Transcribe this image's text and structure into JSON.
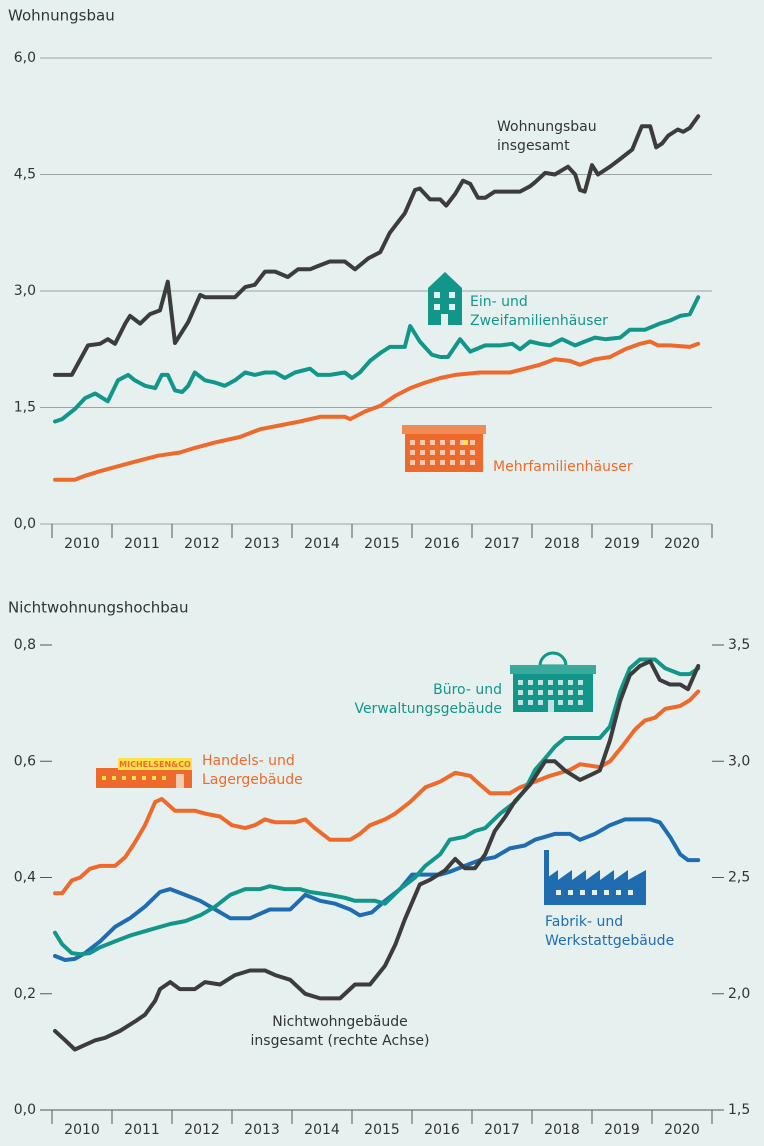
{
  "chart_data": [
    {
      "type": "line",
      "title": "Wohnungsbau",
      "categories": [
        "2010",
        "2011",
        "2012",
        "2013",
        "2014",
        "2015",
        "2016",
        "2017",
        "2018",
        "2019",
        "2020"
      ],
      "xlim": [
        2010,
        2021
      ],
      "ylim": [
        0,
        6
      ],
      "yticks": [
        {
          "value": 0,
          "label": "0,0"
        },
        {
          "value": 1.5,
          "label": "1,5"
        },
        {
          "value": 3,
          "label": "3,0"
        },
        {
          "value": 4.5,
          "label": "4,5"
        },
        {
          "value": 6,
          "label": "6,0"
        }
      ],
      "grid": true,
      "series": [
        {
          "name": "Wohnungsbau insgesamt",
          "color": "#3c3c3c",
          "x": [
            2010.05,
            2010.33,
            2010.6,
            2010.8,
            2010.93,
            2011.05,
            2011.22,
            2011.3,
            2011.47,
            2011.63,
            2011.8,
            2011.93,
            2012.05,
            2012.27,
            2012.47,
            2012.55,
            2013.05,
            2013.22,
            2013.38,
            2013.55,
            2013.72,
            2013.93,
            2014.1,
            2014.3,
            2014.43,
            2014.63,
            2014.88,
            2015.05,
            2015.27,
            2015.47,
            2015.63,
            2015.8,
            2015.88,
            2016.05,
            2016.13,
            2016.3,
            2016.47,
            2016.57,
            2016.72,
            2016.85,
            2016.97,
            2017.1,
            2017.22,
            2017.38,
            2017.8,
            2017.97,
            2018.05,
            2018.22,
            2018.38,
            2018.6,
            2018.72,
            2018.8,
            2018.88,
            2019.0,
            2019.1,
            2019.3,
            2019.47,
            2019.67,
            2019.83,
            2019.97,
            2020.07,
            2020.17,
            2020.27,
            2020.43,
            2020.52,
            2020.63,
            2020.77
          ],
          "values": [
            1.92,
            1.92,
            2.3,
            2.32,
            2.38,
            2.32,
            2.58,
            2.68,
            2.58,
            2.7,
            2.75,
            3.12,
            2.33,
            2.6,
            2.95,
            2.92,
            2.92,
            3.05,
            3.08,
            3.25,
            3.25,
            3.18,
            3.28,
            3.28,
            3.32,
            3.38,
            3.38,
            3.28,
            3.42,
            3.5,
            3.75,
            3.92,
            4.0,
            4.3,
            4.32,
            4.18,
            4.18,
            4.1,
            4.25,
            4.42,
            4.38,
            4.2,
            4.2,
            4.28,
            4.28,
            4.35,
            4.4,
            4.52,
            4.5,
            4.6,
            4.5,
            4.3,
            4.28,
            4.62,
            4.5,
            4.6,
            4.7,
            4.82,
            5.12,
            5.12,
            4.85,
            4.9,
            5.0,
            5.08,
            5.05,
            5.1,
            5.25
          ]
        },
        {
          "name": "Ein- und Zweifamilienhäuser",
          "color": "#13968a",
          "x": [
            2010.05,
            2010.17,
            2010.38,
            2010.55,
            2010.72,
            2010.93,
            2011.1,
            2011.27,
            2011.38,
            2011.55,
            2011.72,
            2011.83,
            2011.93,
            2012.05,
            2012.17,
            2012.27,
            2012.38,
            2012.55,
            2012.72,
            2012.88,
            2013.05,
            2013.22,
            2013.38,
            2013.55,
            2013.72,
            2013.88,
            2014.05,
            2014.3,
            2014.43,
            2014.63,
            2014.88,
            2015.0,
            2015.13,
            2015.3,
            2015.47,
            2015.63,
            2015.88,
            2015.97,
            2016.13,
            2016.33,
            2016.47,
            2016.6,
            2016.8,
            2016.97,
            2017.22,
            2017.47,
            2017.67,
            2017.8,
            2017.97,
            2018.13,
            2018.3,
            2018.5,
            2018.72,
            2018.88,
            2019.05,
            2019.22,
            2019.47,
            2019.63,
            2019.88,
            2020.13,
            2020.3,
            2020.47,
            2020.63,
            2020.77
          ],
          "values": [
            1.32,
            1.35,
            1.48,
            1.62,
            1.68,
            1.58,
            1.85,
            1.92,
            1.85,
            1.78,
            1.75,
            1.92,
            1.92,
            1.72,
            1.7,
            1.78,
            1.95,
            1.85,
            1.82,
            1.78,
            1.85,
            1.95,
            1.92,
            1.95,
            1.95,
            1.88,
            1.95,
            2.0,
            1.92,
            1.92,
            1.95,
            1.88,
            1.95,
            2.1,
            2.2,
            2.28,
            2.28,
            2.55,
            2.35,
            2.18,
            2.15,
            2.15,
            2.38,
            2.22,
            2.3,
            2.3,
            2.32,
            2.25,
            2.35,
            2.32,
            2.3,
            2.38,
            2.3,
            2.35,
            2.4,
            2.38,
            2.4,
            2.5,
            2.5,
            2.58,
            2.62,
            2.68,
            2.7,
            2.92
          ]
        },
        {
          "name": "Mehrfamilienhäuser",
          "color": "#ee6a2c",
          "x": [
            2010.05,
            2010.38,
            2010.55,
            2010.8,
            2011.13,
            2011.47,
            2011.77,
            2012.13,
            2012.38,
            2012.72,
            2013.13,
            2013.47,
            2013.8,
            2014.13,
            2014.47,
            2014.88,
            2014.97,
            2015.22,
            2015.47,
            2015.72,
            2015.97,
            2016.22,
            2016.47,
            2016.72,
            2017.13,
            2017.63,
            2017.88,
            2018.13,
            2018.38,
            2018.63,
            2018.8,
            2019.05,
            2019.3,
            2019.55,
            2019.8,
            2019.97,
            2020.1,
            2020.3,
            2020.63,
            2020.77
          ],
          "values": [
            0.57,
            0.57,
            0.62,
            0.68,
            0.75,
            0.82,
            0.88,
            0.92,
            0.98,
            1.05,
            1.12,
            1.22,
            1.27,
            1.32,
            1.38,
            1.38,
            1.35,
            1.45,
            1.52,
            1.65,
            1.75,
            1.82,
            1.88,
            1.92,
            1.95,
            1.95,
            2.0,
            2.05,
            2.12,
            2.1,
            2.05,
            2.12,
            2.15,
            2.25,
            2.32,
            2.35,
            2.3,
            2.3,
            2.28,
            2.32
          ]
        }
      ],
      "annotations": [
        {
          "lines": [
            "Wohnungsbau",
            "insgesamt"
          ],
          "color": "#333333"
        },
        {
          "lines": [
            "Ein- und",
            "Zweifamilienhäuser"
          ],
          "color": "#13968a"
        },
        {
          "lines": [
            "Mehrfamilienhäuser"
          ],
          "color": "#ee6a2c"
        }
      ]
    },
    {
      "type": "line",
      "title": "Nichtwohnungshochbau",
      "categories": [
        "2010",
        "2011",
        "2012",
        "2013",
        "2014",
        "2015",
        "2016",
        "2017",
        "2018",
        "2019",
        "2020"
      ],
      "xlim": [
        2010,
        2021
      ],
      "ylim": [
        0,
        0.8
      ],
      "yticks": [
        {
          "value": 0,
          "label": "0,0"
        },
        {
          "value": 0.2,
          "label": "0,2"
        },
        {
          "value": 0.4,
          "label": "0,4"
        },
        {
          "value": 0.6,
          "label": "0,6"
        },
        {
          "value": 0.8,
          "label": "0,8"
        }
      ],
      "y2lim": [
        1.5,
        3.5
      ],
      "y2ticks": [
        {
          "value": 1.5,
          "label": "1,5"
        },
        {
          "value": 2,
          "label": "2,0"
        },
        {
          "value": 2.5,
          "label": "2,5"
        },
        {
          "value": 3,
          "label": "3,0"
        },
        {
          "value": 3.5,
          "label": "3,5"
        }
      ],
      "grid": false,
      "icon_label": "MICHELSEN&CO",
      "series": [
        {
          "name": "Handels- und Lagergebäude",
          "color": "#ee6a2c",
          "x": [
            2010.05,
            2010.17,
            2010.33,
            2010.47,
            2010.63,
            2010.8,
            2011.05,
            2011.22,
            2011.38,
            2011.55,
            2011.72,
            2011.83,
            2012.05,
            2012.38,
            2012.55,
            2012.8,
            2013.0,
            2013.22,
            2013.38,
            2013.55,
            2013.72,
            2014.05,
            2014.22,
            2014.38,
            2014.63,
            2014.97,
            2015.13,
            2015.3,
            2015.55,
            2015.72,
            2015.97,
            2016.22,
            2016.47,
            2016.72,
            2016.97,
            2017.13,
            2017.3,
            2017.63,
            2017.8,
            2018.05,
            2018.3,
            2018.63,
            2018.8,
            2019.13,
            2019.3,
            2019.5,
            2019.72,
            2019.88,
            2020.05,
            2020.22,
            2020.47,
            2020.63,
            2020.77
          ],
          "values": [
            0.373,
            0.373,
            0.395,
            0.4,
            0.415,
            0.42,
            0.42,
            0.435,
            0.46,
            0.49,
            0.53,
            0.535,
            0.515,
            0.515,
            0.51,
            0.505,
            0.49,
            0.485,
            0.49,
            0.5,
            0.495,
            0.495,
            0.5,
            0.485,
            0.465,
            0.465,
            0.475,
            0.49,
            0.5,
            0.51,
            0.53,
            0.555,
            0.565,
            0.58,
            0.575,
            0.56,
            0.545,
            0.545,
            0.555,
            0.565,
            0.575,
            0.585,
            0.595,
            0.59,
            0.6,
            0.625,
            0.655,
            0.67,
            0.675,
            0.69,
            0.695,
            0.705,
            0.72
          ]
        },
        {
          "name": "Fabrik- und Werkstattgebäude",
          "color": "#1f6db0",
          "x": [
            2010.05,
            2010.22,
            2010.38,
            2010.55,
            2010.8,
            2011.05,
            2011.3,
            2011.55,
            2011.8,
            2011.97,
            2012.22,
            2012.47,
            2012.72,
            2012.97,
            2013.3,
            2013.63,
            2013.97,
            2014.22,
            2014.47,
            2014.72,
            2014.97,
            2015.13,
            2015.33,
            2015.55,
            2015.8,
            2016.0,
            2016.47,
            2016.63,
            2016.88,
            2017.13,
            2017.38,
            2017.63,
            2017.88,
            2018.05,
            2018.22,
            2018.38,
            2018.63,
            2018.8,
            2019.05,
            2019.3,
            2019.55,
            2019.97,
            2020.13,
            2020.3,
            2020.47,
            2020.6,
            2020.77
          ],
          "values": [
            0.265,
            0.258,
            0.26,
            0.27,
            0.29,
            0.315,
            0.33,
            0.35,
            0.375,
            0.38,
            0.37,
            0.36,
            0.345,
            0.33,
            0.33,
            0.345,
            0.345,
            0.37,
            0.36,
            0.355,
            0.345,
            0.335,
            0.34,
            0.36,
            0.38,
            0.405,
            0.405,
            0.41,
            0.42,
            0.43,
            0.435,
            0.45,
            0.455,
            0.465,
            0.47,
            0.475,
            0.475,
            0.465,
            0.475,
            0.49,
            0.5,
            0.5,
            0.495,
            0.47,
            0.44,
            0.43,
            0.43
          ]
        },
        {
          "name": "Büro- und Verwaltungsgebäude",
          "color": "#13968a",
          "x": [
            2010.05,
            2010.17,
            2010.33,
            2010.47,
            2010.63,
            2010.8,
            2011.05,
            2011.3,
            2011.63,
            2011.97,
            2012.22,
            2012.47,
            2012.72,
            2012.97,
            2013.22,
            2013.47,
            2013.63,
            2013.88,
            2014.13,
            2014.3,
            2014.63,
            2014.88,
            2015.05,
            2015.38,
            2015.55,
            2015.8,
            2016.05,
            2016.22,
            2016.47,
            2016.63,
            2016.88,
            2017.05,
            2017.22,
            2017.47,
            2017.72,
            2017.88,
            2018.05,
            2018.22,
            2018.38,
            2018.55,
            2018.8,
            2019.13,
            2019.3,
            2019.47,
            2019.63,
            2019.8,
            2020.05,
            2020.22,
            2020.47,
            2020.63,
            2020.77
          ],
          "values": [
            0.305,
            0.285,
            0.27,
            0.268,
            0.27,
            0.28,
            0.29,
            0.3,
            0.31,
            0.32,
            0.325,
            0.335,
            0.35,
            0.37,
            0.38,
            0.38,
            0.385,
            0.38,
            0.38,
            0.375,
            0.37,
            0.365,
            0.36,
            0.36,
            0.355,
            0.38,
            0.4,
            0.42,
            0.44,
            0.465,
            0.47,
            0.48,
            0.485,
            0.51,
            0.53,
            0.55,
            0.585,
            0.605,
            0.625,
            0.64,
            0.64,
            0.64,
            0.66,
            0.72,
            0.76,
            0.775,
            0.775,
            0.76,
            0.75,
            0.75,
            0.76
          ]
        },
        {
          "name": "Nichtwohngebäude insgesamt (rechte Achse)",
          "color": "#3c3c3c",
          "axis": "y2",
          "x": [
            2010.05,
            2010.22,
            2010.38,
            2010.55,
            2010.72,
            2010.88,
            2011.13,
            2011.38,
            2011.55,
            2011.72,
            2011.8,
            2011.97,
            2012.13,
            2012.38,
            2012.55,
            2012.8,
            2013.05,
            2013.3,
            2013.55,
            2013.72,
            2013.97,
            2014.22,
            2014.47,
            2014.8,
            2015.05,
            2015.3,
            2015.55,
            2015.72,
            2015.88,
            2016.13,
            2016.3,
            2016.55,
            2016.72,
            2016.88,
            2017.05,
            2017.22,
            2017.38,
            2017.55,
            2017.72,
            2017.97,
            2018.22,
            2018.38,
            2018.55,
            2018.8,
            2018.97,
            2019.13,
            2019.3,
            2019.47,
            2019.63,
            2019.8,
            2019.97,
            2020.13,
            2020.3,
            2020.47,
            2020.6,
            2020.77
          ],
          "values": [
            1.84,
            1.8,
            1.76,
            1.78,
            1.8,
            1.81,
            1.84,
            1.88,
            1.91,
            1.97,
            2.02,
            2.05,
            2.02,
            2.02,
            2.05,
            2.04,
            2.08,
            2.1,
            2.1,
            2.08,
            2.06,
            2.0,
            1.98,
            1.98,
            2.04,
            2.04,
            2.12,
            2.21,
            2.32,
            2.47,
            2.49,
            2.53,
            2.58,
            2.54,
            2.54,
            2.6,
            2.7,
            2.76,
            2.83,
            2.9,
            3.0,
            3.0,
            2.96,
            2.92,
            2.94,
            2.96,
            3.09,
            3.26,
            3.37,
            3.41,
            3.43,
            3.35,
            3.33,
            3.33,
            3.31,
            3.41
          ]
        }
      ],
      "annotations": [
        {
          "lines": [
            "Büro- und",
            "Verwaltungsgebäude"
          ],
          "color": "#13968a"
        },
        {
          "lines": [
            "Handels- und",
            "Lagergebäude"
          ],
          "color": "#ee6a2c"
        },
        {
          "lines": [
            "Fabrik- und",
            "Werkstattgebäude"
          ],
          "color": "#1f6db0"
        },
        {
          "lines": [
            "Nichtwohngebäude",
            "insgesamt (rechte Achse)"
          ],
          "color": "#333333"
        }
      ]
    }
  ]
}
